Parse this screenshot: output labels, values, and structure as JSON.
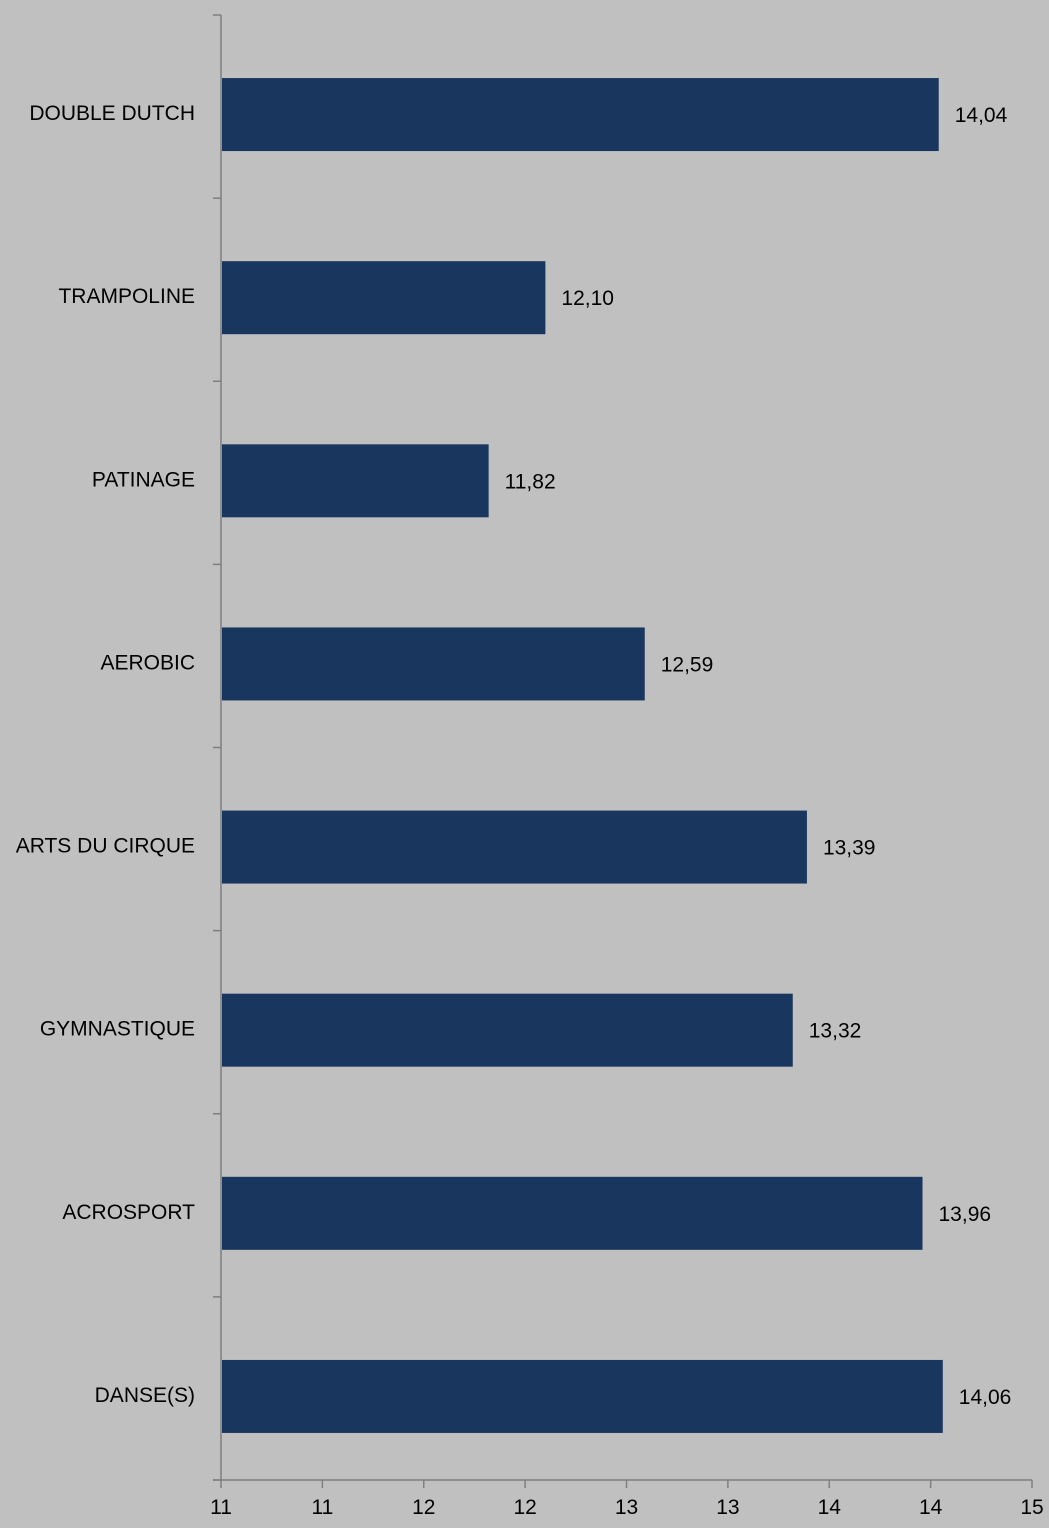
{
  "chart_data": {
    "type": "bar",
    "orientation": "horizontal",
    "categories": [
      "DOUBLE DUTCH",
      "TRAMPOLINE",
      "PATINAGE",
      "AEROBIC",
      "ARTS DU CIRQUE",
      "GYMNASTIQUE",
      "ACROSPORT",
      "DANSE(S)"
    ],
    "values": [
      14.04,
      12.1,
      11.82,
      12.59,
      13.39,
      13.32,
      13.96,
      14.06
    ],
    "value_labels": [
      "14,04",
      "12,10",
      "11,82",
      "12,59",
      "13,39",
      "13,32",
      "13,96",
      "14,06"
    ],
    "x_tick_labels": [
      "11",
      "11",
      "12",
      "12",
      "13",
      "13",
      "14",
      "14",
      "15"
    ],
    "xlim": [
      10.5,
      14.5
    ],
    "grid": false,
    "title": "",
    "xlabel": "",
    "ylabel": "",
    "colors": {
      "bar": "#19375e",
      "background": "#c0c0c0",
      "axis": "#7f7f7f"
    }
  }
}
